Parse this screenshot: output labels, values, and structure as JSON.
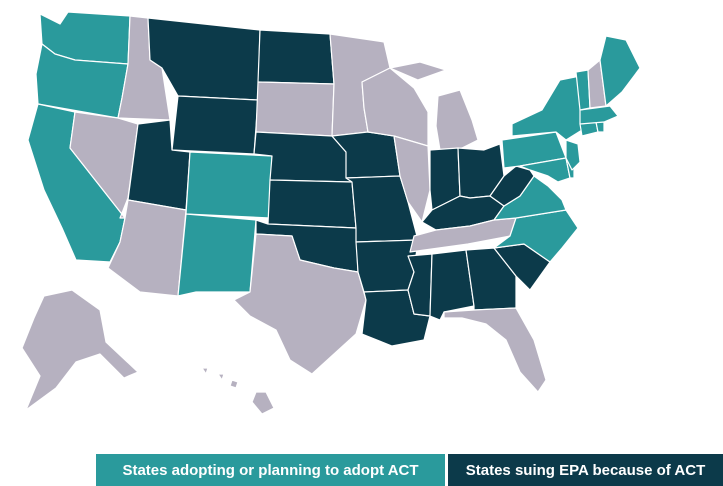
{
  "colors": {
    "adopting": "#2a9a9c",
    "epa": "#0c3a4a",
    "other": "#b6b1c0",
    "border": "#ffffff"
  },
  "legend": {
    "adopting": "States adopting or planning to adopt ACT",
    "epa": "States suing EPA because of ACT"
  },
  "categories": {
    "adopting": [
      "Washington",
      "Oregon",
      "California",
      "Colorado",
      "New Mexico",
      "New York",
      "Vermont",
      "Maine",
      "Massachusetts",
      "Connecticut",
      "Rhode Island",
      "New Jersey",
      "Pennsylvania",
      "Delaware",
      "Maryland",
      "Virginia",
      "North Carolina"
    ],
    "epa": [
      "Montana",
      "North Dakota",
      "Wyoming",
      "Utah",
      "Nebraska",
      "Kansas",
      "Oklahoma",
      "Iowa",
      "Missouri",
      "Arkansas",
      "Louisiana",
      "Mississippi",
      "Alabama",
      "Georgia",
      "South Carolina",
      "Indiana",
      "Ohio",
      "Kentucky",
      "West Virginia"
    ],
    "other": [
      "Idaho",
      "Nevada",
      "Arizona",
      "South Dakota",
      "Minnesota",
      "Wisconsin",
      "Michigan",
      "Illinois",
      "Texas",
      "Tennessee",
      "Florida",
      "New Hampshire",
      "Alaska",
      "Hawaii"
    ]
  }
}
